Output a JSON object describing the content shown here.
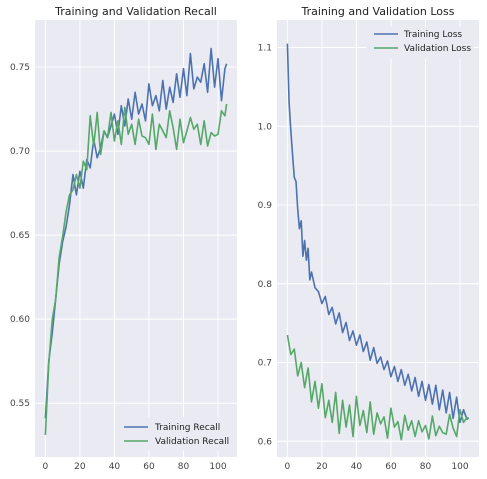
{
  "chart_data": [
    {
      "type": "line",
      "title": "Training and Validation Recall",
      "xlabel": "",
      "ylabel": "",
      "xlim": [
        -6,
        111
      ],
      "ylim": [
        0.518,
        0.778
      ],
      "xticks": [
        0,
        20,
        40,
        60,
        80,
        100
      ],
      "yticks": [
        0.55,
        0.6,
        0.65,
        0.7,
        0.75
      ],
      "ytick_labels": [
        "0.55",
        "0.60",
        "0.65",
        "0.70",
        "0.75"
      ],
      "grid": true,
      "legend": "lower-right",
      "series": [
        {
          "name": "Training Recall",
          "color": "#4c72b0",
          "x": [
            0,
            2,
            4,
            6,
            8,
            10,
            12,
            14,
            16,
            18,
            20,
            22,
            24,
            26,
            28,
            30,
            32,
            34,
            36,
            38,
            40,
            42,
            44,
            46,
            48,
            50,
            52,
            54,
            56,
            58,
            60,
            62,
            64,
            66,
            68,
            70,
            72,
            74,
            76,
            78,
            80,
            82,
            84,
            86,
            88,
            90,
            92,
            94,
            96,
            98,
            100,
            102,
            104,
            105
          ],
          "y": [
            0.541,
            0.575,
            0.592,
            0.612,
            0.633,
            0.646,
            0.655,
            0.668,
            0.686,
            0.674,
            0.688,
            0.678,
            0.695,
            0.69,
            0.707,
            0.696,
            0.702,
            0.712,
            0.708,
            0.715,
            0.722,
            0.71,
            0.727,
            0.715,
            0.731,
            0.719,
            0.735,
            0.722,
            0.728,
            0.718,
            0.74,
            0.727,
            0.733,
            0.724,
            0.742,
            0.725,
            0.738,
            0.729,
            0.746,
            0.732,
            0.749,
            0.733,
            0.758,
            0.737,
            0.744,
            0.741,
            0.752,
            0.735,
            0.761,
            0.738,
            0.755,
            0.73,
            0.749,
            0.752
          ]
        },
        {
          "name": "Validation Recall",
          "color": "#55a868",
          "x": [
            0,
            2,
            4,
            6,
            8,
            10,
            12,
            14,
            16,
            18,
            20,
            22,
            24,
            26,
            28,
            30,
            32,
            34,
            36,
            38,
            40,
            42,
            44,
            46,
            48,
            50,
            52,
            54,
            56,
            58,
            60,
            62,
            64,
            66,
            68,
            70,
            72,
            74,
            76,
            78,
            80,
            82,
            84,
            86,
            88,
            90,
            92,
            94,
            96,
            98,
            100,
            102,
            104,
            105
          ],
          "y": [
            0.531,
            0.574,
            0.6,
            0.612,
            0.637,
            0.649,
            0.664,
            0.674,
            0.677,
            0.686,
            0.678,
            0.694,
            0.689,
            0.721,
            0.703,
            0.723,
            0.698,
            0.712,
            0.708,
            0.723,
            0.706,
            0.718,
            0.704,
            0.726,
            0.71,
            0.716,
            0.704,
            0.719,
            0.709,
            0.708,
            0.704,
            0.722,
            0.701,
            0.716,
            0.712,
            0.708,
            0.724,
            0.714,
            0.701,
            0.719,
            0.705,
            0.712,
            0.72,
            0.713,
            0.716,
            0.704,
            0.718,
            0.703,
            0.711,
            0.709,
            0.71,
            0.724,
            0.721,
            0.728
          ]
        }
      ]
    },
    {
      "type": "line",
      "title": "Training and Validation Loss",
      "xlabel": "",
      "ylabel": "",
      "xlim": [
        -6,
        111
      ],
      "ylim": [
        0.58,
        1.135
      ],
      "xticks": [
        0,
        20,
        40,
        60,
        80,
        100
      ],
      "yticks": [
        0.6,
        0.7,
        0.8,
        0.9,
        1.0,
        1.1
      ],
      "ytick_labels": [
        "0.6",
        "0.7",
        "0.8",
        "0.9",
        "1.0",
        "1.1"
      ],
      "grid": true,
      "legend": "upper-right",
      "series": [
        {
          "name": "Training Loss",
          "color": "#4c72b0",
          "x": [
            0,
            1,
            2,
            3,
            4,
            5,
            6,
            7,
            8,
            9,
            10,
            11,
            12,
            13,
            14,
            16,
            18,
            20,
            22,
            24,
            26,
            28,
            30,
            32,
            34,
            36,
            38,
            40,
            42,
            44,
            46,
            48,
            50,
            52,
            54,
            56,
            58,
            60,
            62,
            64,
            66,
            68,
            70,
            72,
            74,
            76,
            78,
            80,
            82,
            84,
            86,
            88,
            90,
            92,
            94,
            96,
            98,
            100,
            102,
            104,
            105
          ],
          "y": [
            1.105,
            1.03,
            0.995,
            0.965,
            0.935,
            0.93,
            0.895,
            0.87,
            0.88,
            0.835,
            0.855,
            0.83,
            0.845,
            0.805,
            0.815,
            0.795,
            0.79,
            0.775,
            0.784,
            0.761,
            0.77,
            0.749,
            0.763,
            0.738,
            0.751,
            0.728,
            0.74,
            0.722,
            0.735,
            0.714,
            0.726,
            0.703,
            0.719,
            0.699,
            0.707,
            0.691,
            0.702,
            0.682,
            0.695,
            0.676,
            0.691,
            0.671,
            0.685,
            0.664,
            0.681,
            0.657,
            0.676,
            0.652,
            0.672,
            0.647,
            0.671,
            0.64,
            0.665,
            0.636,
            0.662,
            0.629,
            0.656,
            0.624,
            0.64,
            0.628,
            0.63
          ]
        },
        {
          "name": "Validation Loss",
          "color": "#55a868",
          "x": [
            0,
            2,
            4,
            6,
            8,
            10,
            12,
            14,
            16,
            18,
            20,
            22,
            24,
            26,
            28,
            30,
            32,
            34,
            36,
            38,
            40,
            42,
            44,
            46,
            48,
            50,
            52,
            54,
            56,
            58,
            60,
            62,
            64,
            66,
            68,
            70,
            72,
            74,
            76,
            78,
            80,
            82,
            84,
            86,
            88,
            90,
            92,
            94,
            96,
            98,
            100,
            102,
            104,
            105
          ],
          "y": [
            0.735,
            0.71,
            0.717,
            0.683,
            0.7,
            0.668,
            0.693,
            0.65,
            0.676,
            0.642,
            0.673,
            0.63,
            0.652,
            0.624,
            0.662,
            0.61,
            0.652,
            0.618,
            0.646,
            0.606,
            0.657,
            0.62,
            0.639,
            0.611,
            0.65,
            0.609,
            0.636,
            0.622,
            0.631,
            0.604,
            0.642,
            0.618,
            0.625,
            0.602,
            0.633,
            0.614,
            0.626,
            0.606,
            0.626,
            0.612,
            0.62,
            0.603,
            0.632,
            0.607,
            0.619,
            0.611,
            0.609,
            0.634,
            0.617,
            0.606,
            0.64,
            0.624,
            0.63,
            0.628
          ]
        }
      ]
    }
  ]
}
